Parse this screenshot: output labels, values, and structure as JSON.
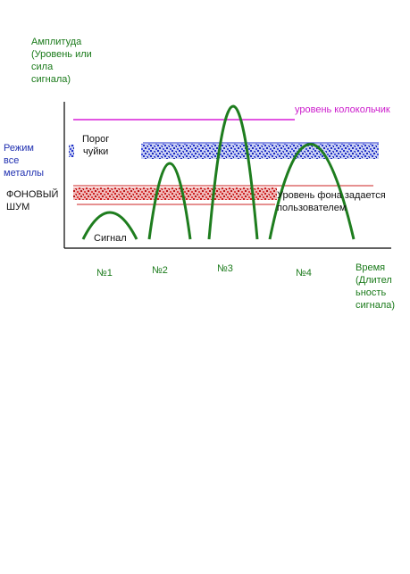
{
  "labels": {
    "y_axis": "Амплитуда\n(Уровень или\nсила\nсигнала)",
    "x_axis": "Время\n(Длител\nьность\nсигнала)",
    "mode": "Режим\nвсе\nметаллы",
    "background_noise": "ФОНОВЫЙ\nШУМ",
    "threshold": "Порог\nчуйки",
    "bell_level": "уровень колокольчик",
    "background_note": "Уровень фона задается\nпользователем",
    "signal": "Сигнал"
  },
  "signals": [
    {
      "label": "№1"
    },
    {
      "label": "№2"
    },
    {
      "label": "№3"
    },
    {
      "label": "№4"
    }
  ],
  "colors": {
    "signal": "#1e7d1e",
    "threshold_band": "#2233cc",
    "noise_band": "#cc2222",
    "bell_line": "#d81ed8",
    "axis": "#000000"
  }
}
